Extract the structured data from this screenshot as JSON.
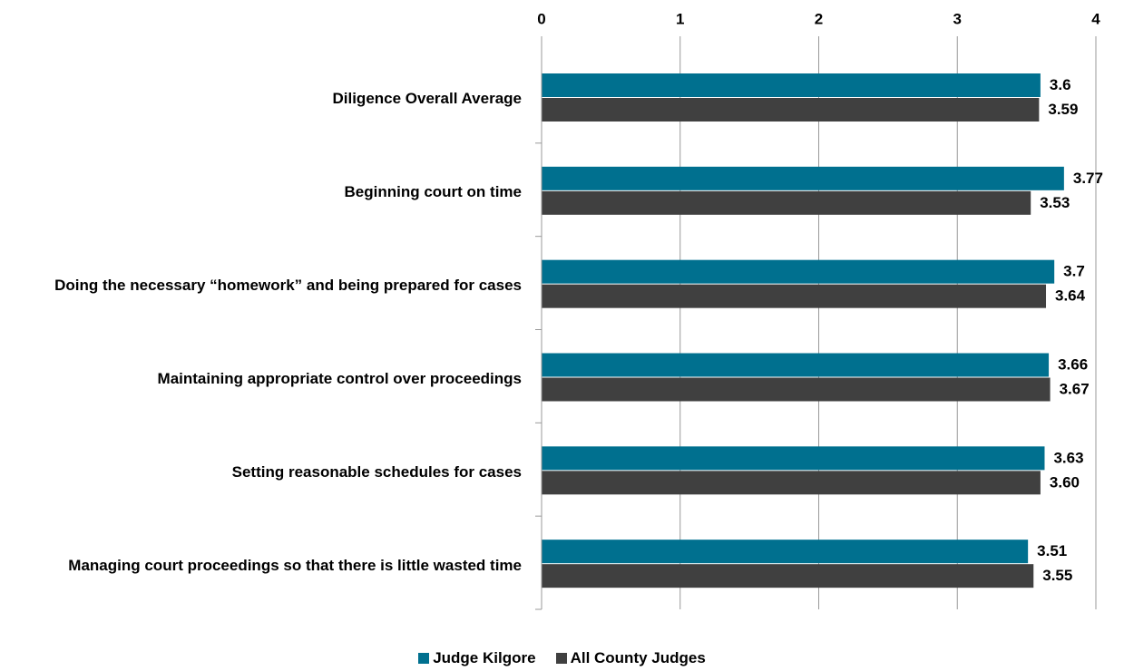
{
  "chart_data": {
    "type": "bar",
    "orientation": "horizontal",
    "categories": [
      "Diligence Overall Average",
      "Beginning court on time",
      "Doing the necessary “homework” and being prepared for cases",
      "Maintaining appropriate control over proceedings",
      "Setting reasonable schedules for cases",
      "Managing court proceedings so that there is little wasted time"
    ],
    "series": [
      {
        "name": "Judge Kilgore",
        "color": "#00708f",
        "values": [
          3.6,
          3.77,
          3.7,
          3.66,
          3.63,
          3.51
        ]
      },
      {
        "name": "All County Judges",
        "color": "#404040",
        "values": [
          3.59,
          3.53,
          3.64,
          3.67,
          3.6,
          3.55
        ],
        "value_labels": [
          "3.59",
          "3.53",
          "3.64",
          "3.67",
          "3.60",
          "3.55"
        ]
      }
    ],
    "xlim": [
      0,
      4
    ],
    "xticks": [
      0,
      1,
      2,
      3,
      4
    ],
    "grid": true,
    "legend": "bottom"
  }
}
